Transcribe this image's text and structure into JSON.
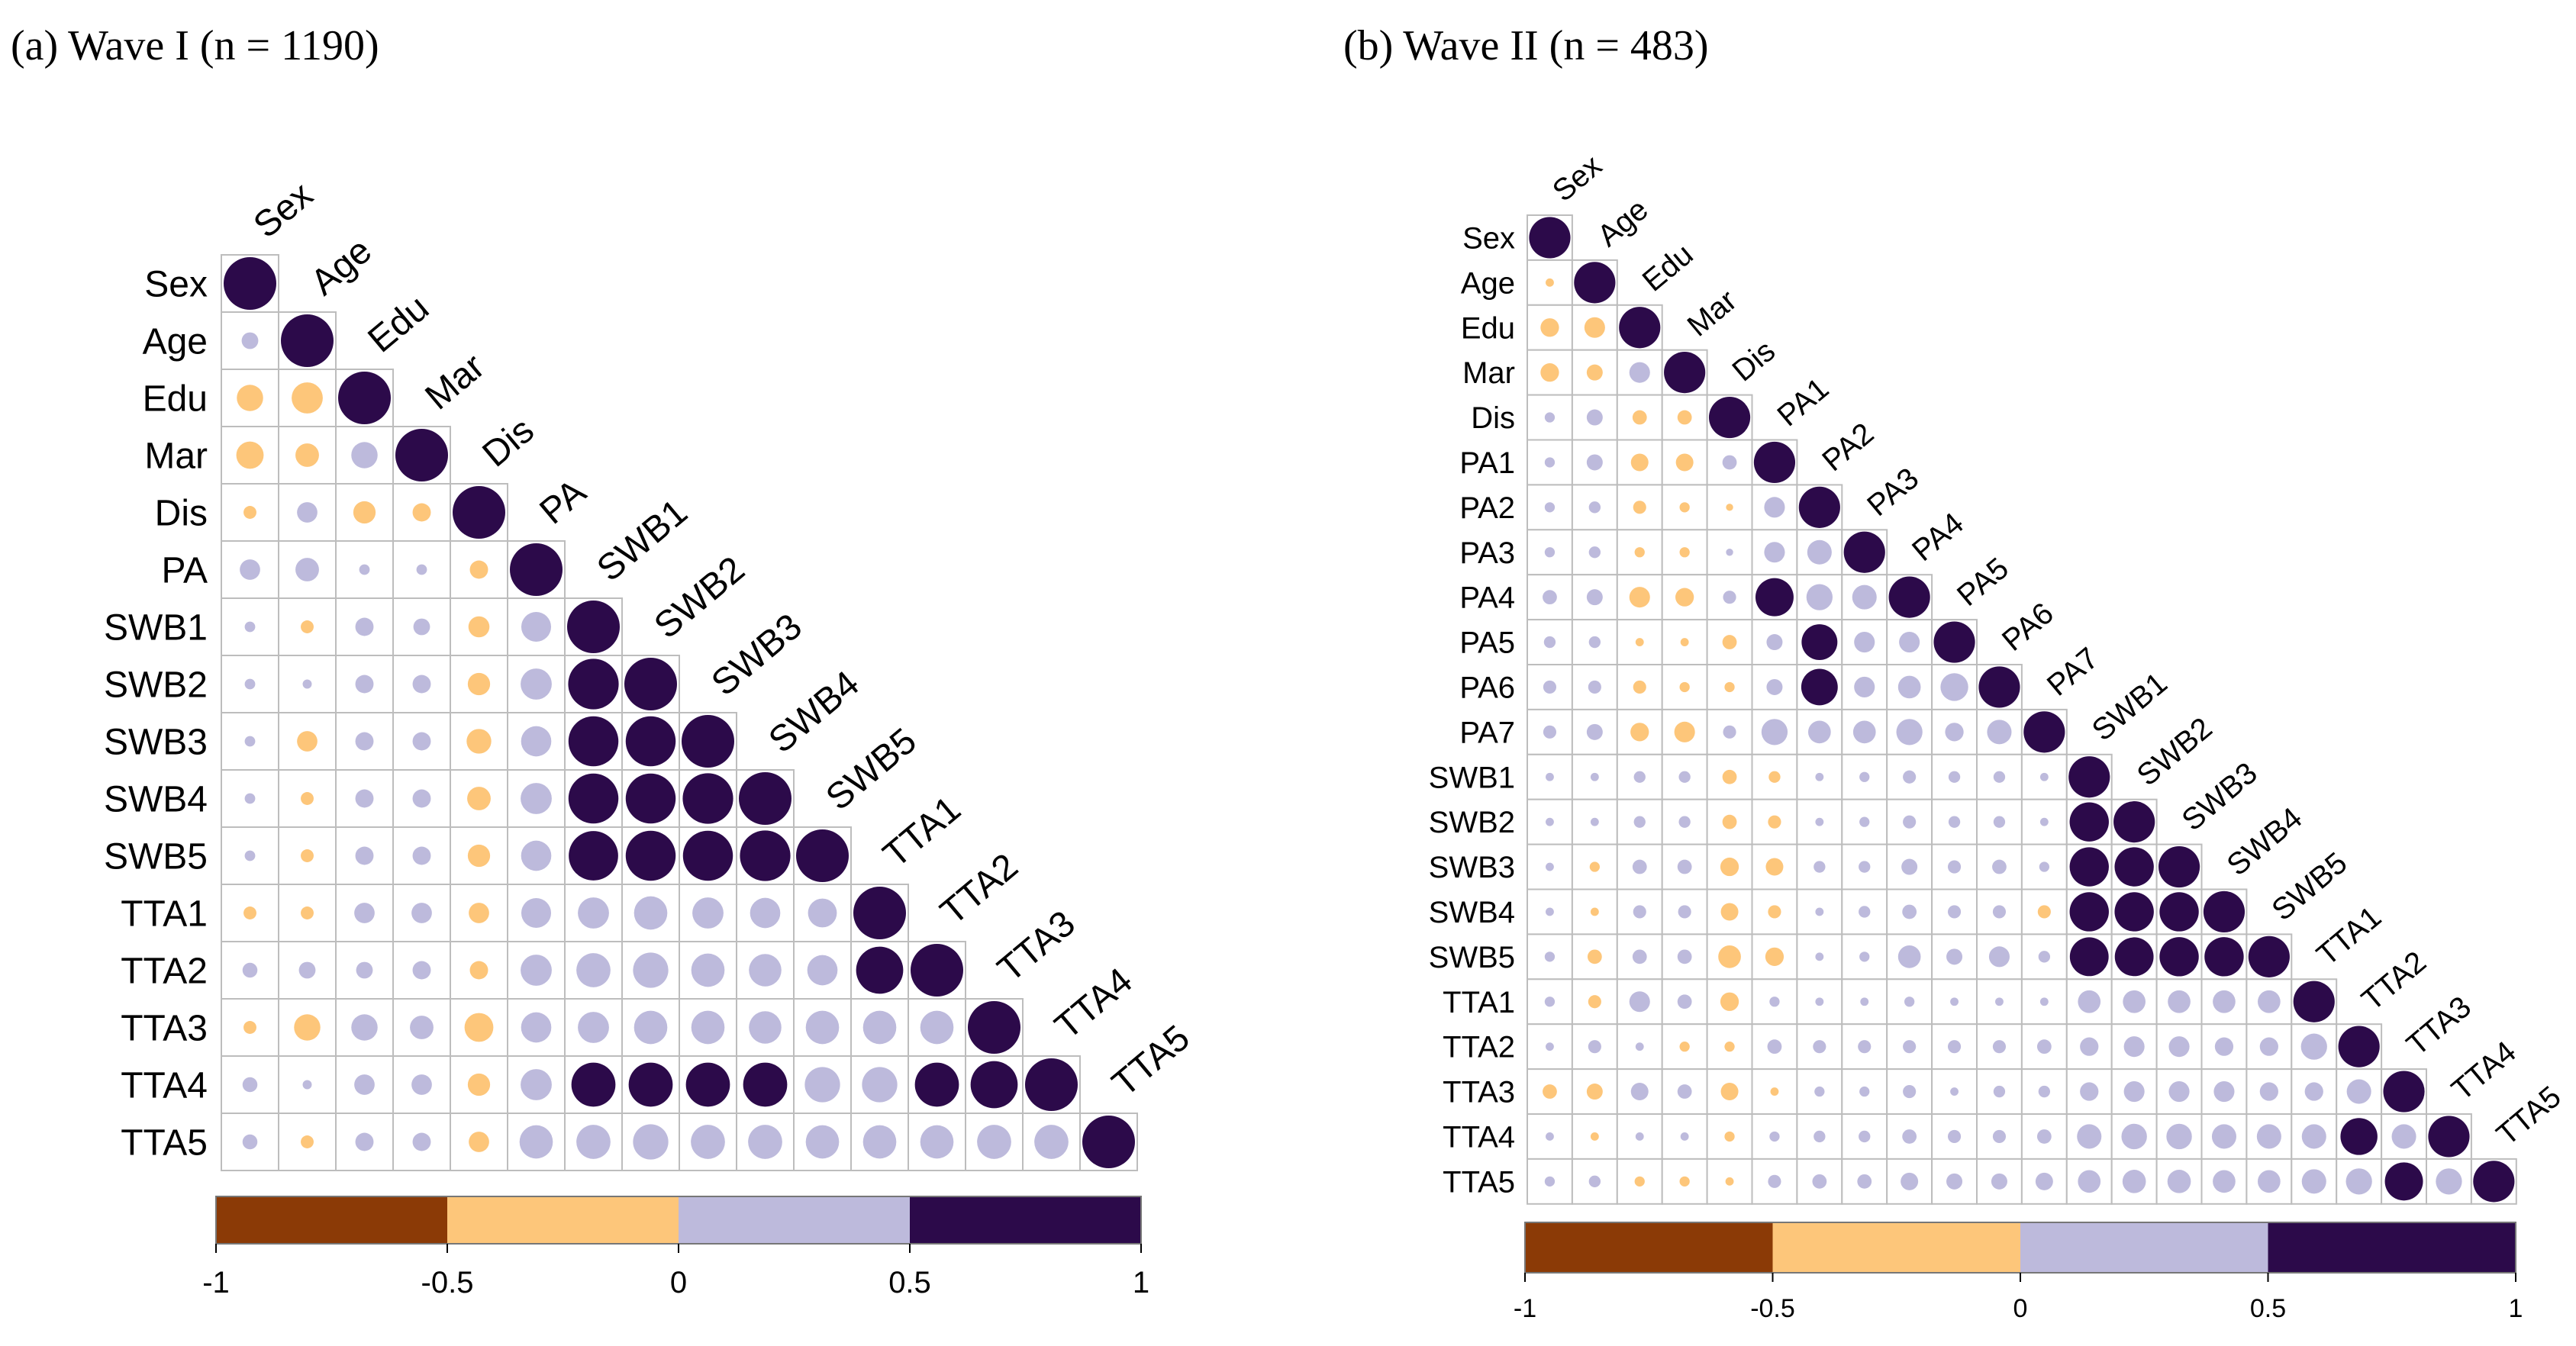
{
  "colors": {
    "neg_strong": "#8B3A06",
    "neg_weak": "#FDC67A",
    "pos_weak": "#BDBADC",
    "pos_strong": "#2C0A4A",
    "cell_border": "#BDBDBD"
  },
  "chart_data": [
    {
      "type": "heatmap",
      "subtype": "correlogram-lower-triangle",
      "title": "(a) Wave I (n = 1190)",
      "variables": [
        "Sex",
        "Age",
        "Edu",
        "Mar",
        "Dis",
        "PA",
        "SWB1",
        "SWB2",
        "SWB3",
        "SWB4",
        "SWB5",
        "TTA1",
        "TTA2",
        "TTA3",
        "TTA4",
        "TTA5"
      ],
      "colorbar": {
        "range": [
          -1,
          1
        ],
        "ticks": [
          "-1",
          "-0.5",
          "0",
          "0.5",
          "1"
        ]
      },
      "rows": [
        [
          1
        ],
        [
          0.1,
          1
        ],
        [
          -0.25,
          -0.35,
          1
        ],
        [
          -0.27,
          -0.2,
          0.25,
          1
        ],
        [
          -0.06,
          0.15,
          -0.18,
          -0.12,
          1
        ],
        [
          0.15,
          0.2,
          0.04,
          0.04,
          -0.12,
          1
        ],
        [
          0.04,
          -0.06,
          0.12,
          0.1,
          -0.16,
          0.32,
          1
        ],
        [
          0.04,
          0.03,
          0.12,
          0.12,
          -0.18,
          0.35,
          0.92,
          1
        ],
        [
          0.04,
          -0.15,
          0.12,
          0.12,
          -0.22,
          0.33,
          0.9,
          0.9,
          1
        ],
        [
          0.04,
          -0.06,
          0.12,
          0.12,
          -0.2,
          0.35,
          0.9,
          0.9,
          0.92,
          1
        ],
        [
          0.04,
          -0.06,
          0.12,
          0.12,
          -0.18,
          0.33,
          0.88,
          0.9,
          0.9,
          0.92,
          1
        ],
        [
          -0.06,
          -0.06,
          0.15,
          0.15,
          -0.15,
          0.32,
          0.35,
          0.4,
          0.35,
          0.33,
          0.3,
          1
        ],
        [
          0.08,
          0.1,
          0.1,
          0.12,
          -0.12,
          0.35,
          0.42,
          0.45,
          0.4,
          0.38,
          0.33,
          0.8,
          1
        ],
        [
          -0.06,
          -0.25,
          0.25,
          0.2,
          -0.3,
          0.33,
          0.35,
          0.4,
          0.4,
          0.38,
          0.4,
          0.4,
          0.4,
          1
        ],
        [
          0.08,
          0.03,
          0.15,
          0.15,
          -0.18,
          0.35,
          0.7,
          0.7,
          0.7,
          0.7,
          0.45,
          0.45,
          0.7,
          0.8,
          1
        ],
        [
          0.08,
          -0.06,
          0.12,
          0.12,
          -0.15,
          0.4,
          0.42,
          0.45,
          0.42,
          0.42,
          0.4,
          0.4,
          0.4,
          0.42,
          0.42,
          1
        ]
      ]
    },
    {
      "type": "heatmap",
      "subtype": "correlogram-lower-triangle",
      "title": "(b) Wave II (n = 483)",
      "variables": [
        "Sex",
        "Age",
        "Edu",
        "Mar",
        "Dis",
        "PA1",
        "PA2",
        "PA3",
        "PA4",
        "PA5",
        "PA6",
        "PA7",
        "SWB1",
        "SWB2",
        "SWB3",
        "SWB4",
        "SWB5",
        "TTA1",
        "TTA2",
        "TTA3",
        "TTA4",
        "TTA5"
      ],
      "colorbar": {
        "range": [
          -1,
          1
        ],
        "ticks": [
          "-1",
          "-0.5",
          "0",
          "0.5",
          "1"
        ]
      },
      "rows": [
        [
          1
        ],
        [
          -0.04,
          1
        ],
        [
          -0.2,
          -0.25,
          1
        ],
        [
          -0.2,
          -0.15,
          0.25,
          1
        ],
        [
          0.06,
          0.15,
          -0.12,
          -0.12,
          1
        ],
        [
          0.06,
          0.15,
          -0.18,
          -0.18,
          0.12,
          1
        ],
        [
          0.06,
          0.08,
          -0.1,
          -0.06,
          -0.03,
          0.25,
          1
        ],
        [
          0.06,
          0.08,
          -0.06,
          -0.06,
          0.03,
          0.25,
          0.35,
          1
        ],
        [
          0.12,
          0.15,
          -0.25,
          -0.2,
          0.1,
          0.85,
          0.4,
          0.35,
          1
        ],
        [
          0.08,
          0.08,
          -0.04,
          -0.04,
          -0.12,
          0.15,
          0.75,
          0.25,
          0.25,
          1
        ],
        [
          0.1,
          0.1,
          -0.1,
          -0.06,
          -0.06,
          0.15,
          0.78,
          0.25,
          0.3,
          0.45,
          1
        ],
        [
          0.1,
          0.15,
          -0.2,
          -0.25,
          0.1,
          0.4,
          0.3,
          0.3,
          0.4,
          0.2,
          0.35,
          1
        ],
        [
          0.04,
          0.04,
          0.08,
          0.08,
          -0.12,
          -0.08,
          0.04,
          0.06,
          0.1,
          0.08,
          0.08,
          0.04,
          1
        ],
        [
          0.04,
          0.04,
          0.08,
          0.08,
          -0.12,
          -0.1,
          0.04,
          0.06,
          0.1,
          0.08,
          0.08,
          0.04,
          0.9,
          1
        ],
        [
          0.04,
          -0.06,
          0.12,
          0.12,
          -0.2,
          -0.18,
          0.08,
          0.08,
          0.15,
          0.1,
          0.12,
          0.06,
          0.9,
          0.9,
          1
        ],
        [
          0.04,
          -0.04,
          0.1,
          0.1,
          -0.18,
          -0.1,
          0.04,
          0.08,
          0.12,
          0.1,
          0.1,
          -0.1,
          0.9,
          0.9,
          0.9,
          1
        ],
        [
          0.06,
          -0.12,
          0.12,
          0.12,
          -0.3,
          -0.2,
          0.04,
          0.06,
          0.3,
          0.15,
          0.25,
          0.08,
          0.88,
          0.88,
          0.9,
          0.9,
          1
        ],
        [
          0.06,
          -0.1,
          0.25,
          0.12,
          -0.2,
          0.06,
          0.04,
          0.04,
          0.06,
          0.04,
          0.04,
          0.04,
          0.3,
          0.3,
          0.3,
          0.3,
          0.3,
          1
        ],
        [
          0.04,
          0.1,
          0.04,
          -0.06,
          -0.06,
          0.12,
          0.1,
          0.1,
          0.1,
          0.1,
          0.1,
          0.12,
          0.2,
          0.25,
          0.25,
          0.2,
          0.2,
          0.4,
          1
        ],
        [
          -0.12,
          -0.15,
          0.18,
          0.12,
          -0.18,
          -0.04,
          0.06,
          0.06,
          0.1,
          0.04,
          0.08,
          0.08,
          0.2,
          0.25,
          0.25,
          0.25,
          0.2,
          0.2,
          0.35,
          1
        ],
        [
          0.04,
          -0.04,
          0.04,
          0.04,
          -0.06,
          0.06,
          0.08,
          0.08,
          0.12,
          0.1,
          0.1,
          0.12,
          0.35,
          0.38,
          0.38,
          0.35,
          0.35,
          0.35,
          0.8,
          0.35,
          1
        ],
        [
          0.06,
          0.08,
          -0.06,
          -0.06,
          -0.04,
          0.1,
          0.12,
          0.12,
          0.18,
          0.15,
          0.15,
          0.18,
          0.3,
          0.32,
          0.32,
          0.3,
          0.3,
          0.35,
          0.4,
          0.85,
          0.4,
          1
        ]
      ]
    }
  ]
}
